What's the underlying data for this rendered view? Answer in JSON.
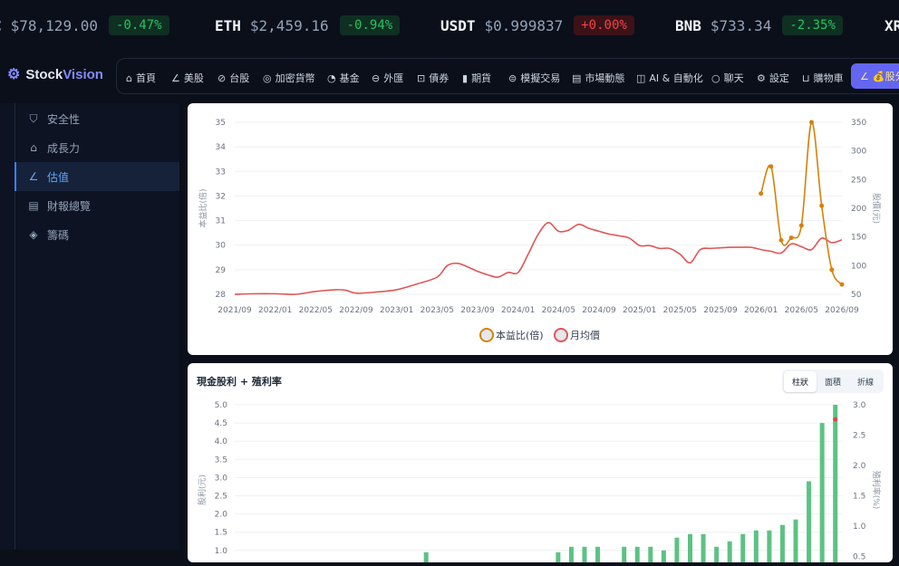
{
  "ticker": [
    {
      "symbol": "C",
      "price": "$78,129.00",
      "change": "-0.47%",
      "dir": "down"
    },
    {
      "symbol": "ETH",
      "price": "$2,459.16",
      "change": "-0.94%",
      "dir": "down"
    },
    {
      "symbol": "USDT",
      "price": "$0.999837",
      "change": "+0.00%",
      "dir": "up"
    },
    {
      "symbol": "BNB",
      "price": "$733.34",
      "change": "-2.35%",
      "dir": "down"
    },
    {
      "symbol": "XR",
      "price": "",
      "change": "",
      "dir": "down"
    }
  ],
  "brand": {
    "part1": "Stock",
    "part2": "Vision"
  },
  "nav": [
    {
      "label": "首頁",
      "icon": "home-icon"
    },
    {
      "label": "美股",
      "icon": "chart-line-icon"
    },
    {
      "label": "台股",
      "icon": "check-circle-icon"
    },
    {
      "label": "加密貨幣",
      "icon": "coin-icon"
    },
    {
      "label": "基金",
      "icon": "pie-chart-icon"
    },
    {
      "label": "外匯",
      "icon": "exchange-icon"
    },
    {
      "label": "債券",
      "icon": "trend-box-icon"
    },
    {
      "label": "期貨",
      "icon": "bar-chart-icon"
    },
    {
      "label": "模擬交易",
      "icon": "simulate-icon"
    },
    {
      "label": "市場動態",
      "icon": "newspaper-icon"
    },
    {
      "label": "AI & 自動化",
      "icon": "robot-icon"
    },
    {
      "label": "聊天",
      "icon": "chat-icon"
    },
    {
      "label": "設定",
      "icon": "gear-icon"
    },
    {
      "label": "購物車",
      "icon": "cart-icon"
    },
    {
      "label": "💰股分",
      "icon": "analysis-icon"
    }
  ],
  "sidebar": [
    {
      "label": "安全性",
      "icon": "shield-icon"
    },
    {
      "label": "成長力",
      "icon": "rocket-icon"
    },
    {
      "label": "估值",
      "icon": "valuation-chart-icon",
      "active": true
    },
    {
      "label": "財報總覽",
      "icon": "report-icon"
    },
    {
      "label": "籌碼",
      "icon": "layers-icon"
    }
  ],
  "chart_pe": {
    "chart_data": {
      "type": "line",
      "x_ticks": [
        "2021/09",
        "2022/01",
        "2022/05",
        "2022/09",
        "2023/01",
        "2023/05",
        "2023/09",
        "2024/01",
        "2024/05",
        "2024/09",
        "2025/01",
        "2025/05",
        "2025/09",
        "2026/01",
        "2026/05",
        "2026/09"
      ],
      "y_left_ticks": [
        "35",
        "34",
        "33",
        "32",
        "31",
        "30",
        "29",
        "28"
      ],
      "y_right_ticks": [
        "350",
        "300",
        "250",
        "200",
        "150",
        "100",
        "50"
      ],
      "ylabel_left": "本益比(倍)",
      "ylabel_right": "股價(元)",
      "ylim_left": [
        28,
        35
      ],
      "ylim_right": [
        50,
        350
      ],
      "legend": [
        "本益比(倍)",
        "月均價"
      ],
      "series": [
        {
          "name": "月均價",
          "color": "#e05656",
          "axis": "right",
          "x": [
            "2021/09",
            "2021/11",
            "2022/01",
            "2022/03",
            "2022/05",
            "2022/07",
            "2022/08",
            "2022/09",
            "2022/11",
            "2023/01",
            "2023/03",
            "2023/05",
            "2023/06",
            "2023/07",
            "2023/08",
            "2023/09",
            "2023/10",
            "2023/11",
            "2023/12",
            "2024/01",
            "2024/02",
            "2024/03",
            "2024/04",
            "2024/05",
            "2024/06",
            "2024/07",
            "2024/08",
            "2024/09",
            "2024/10",
            "2024/11",
            "2024/12",
            "2025/01",
            "2025/02",
            "2025/03",
            "2025/04",
            "2025/05",
            "2025/06",
            "2025/07",
            "2025/08",
            "2025/09",
            "2025/10",
            "2025/11",
            "2025/12",
            "2026/01",
            "2026/02",
            "2026/03",
            "2026/04",
            "2026/05",
            "2026/06",
            "2026/07",
            "2026/08",
            "2026/09"
          ],
          "values": [
            50,
            51,
            51,
            50,
            55,
            58,
            57,
            52,
            54,
            58,
            68,
            80,
            100,
            104,
            98,
            90,
            84,
            80,
            88,
            88,
            120,
            155,
            175,
            160,
            162,
            172,
            165,
            160,
            155,
            152,
            148,
            135,
            135,
            130,
            130,
            120,
            105,
            128,
            130,
            131,
            132,
            132,
            132,
            128,
            125,
            122,
            138,
            133,
            128,
            148,
            140,
            145
          ]
        },
        {
          "name": "本益比(倍)",
          "color": "#d4820c",
          "axis": "left",
          "x": [
            "2026/01",
            "2026/02",
            "2026/03",
            "2026/04",
            "2026/05",
            "2026/06",
            "2026/07",
            "2026/08",
            "2026/09"
          ],
          "values": [
            32.1,
            33.2,
            30.2,
            30.3,
            30.8,
            35.0,
            31.6,
            29.0,
            28.4
          ]
        }
      ]
    }
  },
  "chart_div": {
    "title": "現金股利 + 殖利率",
    "toggle": [
      "柱狀",
      "面積",
      "折線"
    ],
    "toggle_active": 0,
    "chart_data": {
      "type": "bar",
      "y_left_ticks": [
        "5.0",
        "4.5",
        "4.0",
        "3.5",
        "3.0",
        "2.5",
        "2.0",
        "1.5",
        "1.0"
      ],
      "y_right_ticks": [
        "3.0",
        "2.5",
        "2.0",
        "1.5",
        "1.0",
        "0.5"
      ],
      "ylabel_left": "股利(元)",
      "ylabel_right": "殖利率(%)",
      "ylim_left": [
        0,
        5.0
      ],
      "ylim_right": [
        0,
        3.0
      ],
      "series": [
        {
          "name": "",
          "color": "#5cc283",
          "values": [
            0.2,
            0.2,
            0.2,
            0.2,
            0.2,
            0.2,
            0.2,
            0.2,
            0.2,
            0.2,
            0.2,
            0.2,
            0.2,
            0.2,
            0.95,
            0.2,
            0.2,
            0.2,
            0.2,
            0.2,
            0.2,
            0.2,
            0.2,
            0.2,
            0.95,
            1.1,
            1.1,
            1.1,
            0.2,
            1.1,
            1.1,
            1.1,
            1.0,
            1.35,
            1.45,
            1.45,
            1.1,
            1.25,
            1.45,
            1.55,
            1.55,
            1.7,
            1.85,
            2.9,
            4.5,
            5.0
          ]
        }
      ],
      "marker": {
        "index": 45,
        "value": 4.6,
        "color": "#d14b4b"
      }
    }
  }
}
